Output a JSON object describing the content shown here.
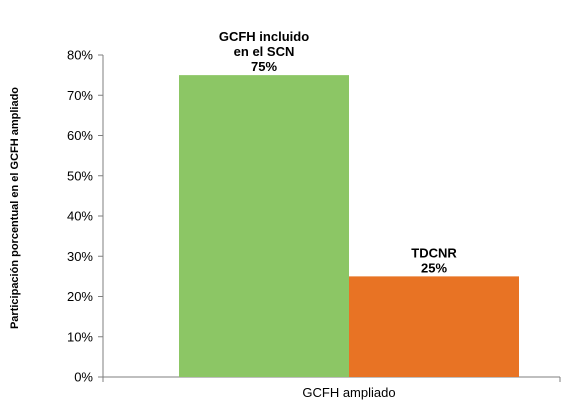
{
  "chart_data": {
    "type": "bar",
    "categories": [
      "GCFH ampliado"
    ],
    "series": [
      {
        "label_lines": [
          "GCFH incluido",
          "en el SCN",
          "75%"
        ],
        "values": [
          75
        ],
        "color": "#8cc665"
      },
      {
        "label_lines": [
          "TDCNR",
          "25%"
        ],
        "values": [
          25
        ],
        "color": "#e87324"
      }
    ],
    "ylabel": "Participación porcentual en el GCFH ampliado",
    "ylim": [
      0,
      80
    ],
    "yticks": [
      0,
      10,
      20,
      30,
      40,
      50,
      60,
      70,
      80
    ],
    "ytick_format": "%",
    "grid": false,
    "legend": "none"
  }
}
